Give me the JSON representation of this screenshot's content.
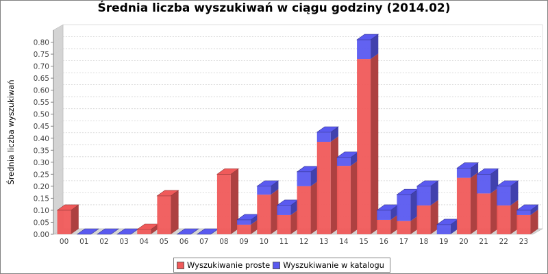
{
  "chart_data": {
    "type": "bar",
    "stacked": true,
    "style": "3d",
    "title": "Średnia liczba wyszukiwań w ciągu godziny (2014.02)",
    "ylabel": "Średnia liczba wyszukiwań",
    "xlabel": "",
    "ylim": [
      0,
      0.85
    ],
    "yticks": [
      "0.00",
      "0.05",
      "0.10",
      "0.15",
      "0.20",
      "0.25",
      "0.30",
      "0.35",
      "0.40",
      "0.45",
      "0.50",
      "0.55",
      "0.60",
      "0.65",
      "0.70",
      "0.75",
      "0.80"
    ],
    "grid": true,
    "legend_position": "bottom",
    "categories": [
      "00",
      "01",
      "02",
      "03",
      "04",
      "05",
      "06",
      "07",
      "08",
      "09",
      "10",
      "11",
      "12",
      "13",
      "14",
      "15",
      "16",
      "17",
      "18",
      "19",
      "20",
      "21",
      "22",
      "23"
    ],
    "series": [
      {
        "name": "Wyszukiwanie proste",
        "color": "#f05a5a",
        "values": [
          0.1,
          0.0,
          0.0,
          0.0,
          0.02,
          0.16,
          0.0,
          0.0,
          0.25,
          0.04,
          0.165,
          0.08,
          0.2,
          0.385,
          0.285,
          0.73,
          0.06,
          0.055,
          0.12,
          0.0,
          0.235,
          0.17,
          0.12,
          0.08
        ]
      },
      {
        "name": "Wyszukiwanie w katalogu",
        "color": "#5a5af0",
        "values": [
          0.0,
          0.0,
          0.0,
          0.0,
          0.0,
          0.0,
          0.0,
          0.0,
          0.0,
          0.02,
          0.035,
          0.04,
          0.06,
          0.04,
          0.035,
          0.08,
          0.04,
          0.11,
          0.08,
          0.04,
          0.04,
          0.08,
          0.08,
          0.02
        ]
      }
    ]
  }
}
